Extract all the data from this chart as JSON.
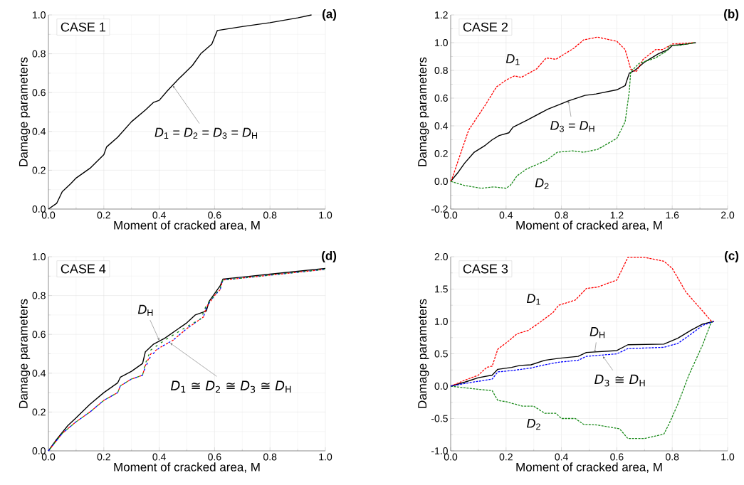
{
  "chart_data": [
    {
      "type": "line",
      "title": "(a)",
      "subtitle": "CASE 1",
      "xlabel": "Moment of cracked area, M",
      "ylabel": "Damage parameters",
      "grid": true,
      "xlim": [
        0,
        1
      ],
      "ylim": [
        0,
        1
      ],
      "xticks": [
        {
          "value": 0,
          "label": "0.0"
        },
        {
          "value": 0.2,
          "label": "0.2"
        },
        {
          "value": 0.4,
          "label": "0.4"
        },
        {
          "value": 0.6,
          "label": "0.6"
        },
        {
          "value": 0.8,
          "label": "0.8"
        },
        {
          "value": 1,
          "label": "1.0"
        }
      ],
      "yticks": [
        {
          "value": 0,
          "label": "0.0"
        },
        {
          "value": 0.2,
          "label": "0.2"
        },
        {
          "value": 0.4,
          "label": "0.4"
        },
        {
          "value": 0.6,
          "label": "0.6"
        },
        {
          "value": 0.8,
          "label": "0.8"
        },
        {
          "value": 1,
          "label": "1.0"
        }
      ],
      "series": [
        {
          "color": "#000000",
          "line_style": "solid",
          "x": [
            0,
            0.03,
            0.05,
            0.08,
            0.1,
            0.15,
            0.2,
            0.21,
            0.25,
            0.3,
            0.35,
            0.38,
            0.4,
            0.43,
            0.47,
            0.52,
            0.55,
            0.59,
            0.61,
            0.7,
            0.8,
            0.9,
            0.95
          ],
          "values": [
            0,
            0.03,
            0.09,
            0.13,
            0.16,
            0.21,
            0.28,
            0.32,
            0.37,
            0.45,
            0.51,
            0.55,
            0.56,
            0.61,
            0.67,
            0.74,
            0.8,
            0.85,
            0.92,
            0.94,
            0.96,
            0.985,
            1.0
          ]
        }
      ],
      "annotations": [
        "*D*$_{1}$ = *D*$_{2}$ = *D*$_{3}$ = *D*$_{H}$"
      ]
    },
    {
      "type": "line",
      "title": "(b)",
      "subtitle": "CASE 2",
      "xlabel": "Moment of cracked area, M",
      "ylabel": "Damage parameters",
      "grid": true,
      "xlim": [
        0,
        2
      ],
      "ylim": [
        -0.2,
        1.2
      ],
      "xticks": [
        {
          "value": 0,
          "label": "0.0"
        },
        {
          "value": 0.4,
          "label": "0.4"
        },
        {
          "value": 0.8,
          "label": "0.8"
        },
        {
          "value": 1.2,
          "label": "1.2"
        },
        {
          "value": 1.6,
          "label": "1.6"
        },
        {
          "value": 2,
          "label": "2.0"
        }
      ],
      "yticks": [
        {
          "value": -0.2,
          "label": "-0.2"
        },
        {
          "value": 0,
          "label": "0.0"
        },
        {
          "value": 0.2,
          "label": "0.2"
        },
        {
          "value": 0.4,
          "label": "0.4"
        },
        {
          "value": 0.6,
          "label": "0.6"
        },
        {
          "value": 0.8,
          "label": "0.8"
        },
        {
          "value": 1,
          "label": "1.0"
        },
        {
          "value": 1.2,
          "label": "1.2"
        }
      ],
      "series": [
        {
          "color": "#ff0000",
          "line_style": "dashed",
          "x": [
            0,
            0.01,
            0.13,
            0.25,
            0.33,
            0.4,
            0.46,
            0.51,
            0.62,
            0.69,
            0.76,
            0.89,
            0.96,
            1.06,
            1.2,
            1.26,
            1.3,
            1.34,
            1.39,
            1.48,
            1.53,
            1.6,
            1.76
          ],
          "values": [
            0,
            0.02,
            0.37,
            0.55,
            0.68,
            0.73,
            0.76,
            0.75,
            0.81,
            0.89,
            0.88,
            0.96,
            1.02,
            1.04,
            1.01,
            0.95,
            0.81,
            0.79,
            0.88,
            0.95,
            0.95,
            0.99,
            1.0
          ]
        },
        {
          "color": "#1a8a1a",
          "line_style": "dashed",
          "x": [
            0,
            0.1,
            0.22,
            0.31,
            0.4,
            0.43,
            0.48,
            0.55,
            0.69,
            0.77,
            0.88,
            0.96,
            1.06,
            1.2,
            1.26,
            1.29,
            1.3,
            1.36,
            1.48,
            1.56,
            1.58,
            1.65,
            1.76
          ],
          "values": [
            0,
            -0.03,
            -0.05,
            -0.04,
            -0.05,
            -0.03,
            0.04,
            0.09,
            0.15,
            0.21,
            0.22,
            0.21,
            0.23,
            0.31,
            0.43,
            0.65,
            0.79,
            0.85,
            0.89,
            0.94,
            0.98,
            0.98,
            1.0
          ]
        },
        {
          "color": "#000000",
          "line_style": "solid",
          "x": [
            0,
            0.05,
            0.1,
            0.17,
            0.25,
            0.3,
            0.35,
            0.42,
            0.45,
            0.55,
            0.7,
            0.8,
            0.85,
            0.97,
            1.05,
            1.2,
            1.26,
            1.29,
            1.33,
            1.4,
            1.5,
            1.57,
            1.6,
            1.7,
            1.77
          ],
          "values": [
            0,
            0.06,
            0.13,
            0.21,
            0.26,
            0.3,
            0.33,
            0.35,
            0.39,
            0.44,
            0.52,
            0.56,
            0.58,
            0.62,
            0.63,
            0.66,
            0.69,
            0.78,
            0.8,
            0.86,
            0.92,
            0.95,
            0.98,
            0.99,
            1.0
          ]
        }
      ],
      "annotations": [
        "*D*$_{1}$",
        "*D*$_{2}$",
        {
          "text": "*D*$_{3}$ = *D*$_{H}$",
          "x": 0.85,
          "y": 0.58
        }
      ]
    },
    {
      "type": "line",
      "title": "(d)",
      "subtitle": "CASE 4",
      "xlabel": "Moment of cracked area, M",
      "ylabel": "Damage parameters",
      "grid": true,
      "xlim": [
        0,
        1
      ],
      "ylim": [
        0,
        1
      ],
      "xticks": [
        {
          "value": 0,
          "label": "0.0"
        },
        {
          "value": 0.2,
          "label": "0.2"
        },
        {
          "value": 0.4,
          "label": "0.4"
        },
        {
          "value": 0.6,
          "label": "0.6"
        },
        {
          "value": 0.8,
          "label": "0.8"
        },
        {
          "value": 1,
          "label": "1.0"
        }
      ],
      "yticks": [
        {
          "value": 0,
          "label": "0.0"
        },
        {
          "value": 0.2,
          "label": "0.2"
        },
        {
          "value": 0.4,
          "label": "0.4"
        },
        {
          "value": 0.6,
          "label": "0.6"
        },
        {
          "value": 0.8,
          "label": "0.8"
        },
        {
          "value": 1,
          "label": "1.0"
        }
      ],
      "series": [
        {
          "color": "#000000",
          "line_style": "solid",
          "x": [
            0,
            0.03,
            0.07,
            0.1,
            0.15,
            0.2,
            0.25,
            0.26,
            0.3,
            0.34,
            0.35,
            0.38,
            0.42,
            0.47,
            0.5,
            0.53,
            0.57,
            0.58,
            0.6,
            0.62,
            0.63,
            0.7,
            0.8,
            0.9,
            1.0
          ],
          "values": [
            0,
            0.06,
            0.13,
            0.17,
            0.24,
            0.3,
            0.35,
            0.38,
            0.41,
            0.45,
            0.51,
            0.55,
            0.58,
            0.63,
            0.66,
            0.7,
            0.72,
            0.77,
            0.81,
            0.85,
            0.885,
            0.895,
            0.91,
            0.925,
            0.94
          ]
        },
        {
          "color": "#0000ff",
          "line_style": "dashed",
          "x": [
            0,
            0.05,
            0.1,
            0.15,
            0.2,
            0.25,
            0.26,
            0.3,
            0.34,
            0.35,
            0.37,
            0.4,
            0.45,
            0.5,
            0.53,
            0.56,
            0.57,
            0.6,
            0.62,
            0.63,
            0.7,
            0.8,
            0.9,
            1.0
          ],
          "values": [
            0,
            0.09,
            0.15,
            0.2,
            0.26,
            0.3,
            0.335,
            0.37,
            0.39,
            0.43,
            0.49,
            0.53,
            0.57,
            0.63,
            0.66,
            0.69,
            0.74,
            0.8,
            0.83,
            0.88,
            0.89,
            0.905,
            0.92,
            0.935
          ]
        },
        {
          "color": "#ff0000",
          "line_style": "dashed",
          "x": [
            0,
            0.05,
            0.1,
            0.15,
            0.2,
            0.25,
            0.26,
            0.3,
            0.34,
            0.35,
            0.37,
            0.4,
            0.45,
            0.5,
            0.53,
            0.56,
            0.57,
            0.6,
            0.62,
            0.63,
            0.7,
            0.8,
            0.9,
            1.0
          ],
          "values": [
            0,
            0.09,
            0.15,
            0.2,
            0.26,
            0.3,
            0.335,
            0.37,
            0.39,
            0.44,
            0.5,
            0.53,
            0.57,
            0.63,
            0.66,
            0.69,
            0.74,
            0.8,
            0.83,
            0.88,
            0.89,
            0.905,
            0.92,
            0.935
          ]
        },
        {
          "color": "#1a8a1a",
          "line_style": "dashed",
          "x": [
            0,
            0.05,
            0.1,
            0.15,
            0.2,
            0.25,
            0.26,
            0.3,
            0.34,
            0.35,
            0.37,
            0.42,
            0.5,
            0.55,
            0.57,
            0.6,
            0.62,
            0.63,
            0.7,
            0.8,
            0.9,
            1.0
          ],
          "values": [
            0,
            0.09,
            0.15,
            0.2,
            0.26,
            0.3,
            0.335,
            0.37,
            0.39,
            0.45,
            0.52,
            0.57,
            0.64,
            0.68,
            0.75,
            0.8,
            0.84,
            0.88,
            0.89,
            0.905,
            0.92,
            0.935
          ]
        }
      ],
      "annotations": [
        {
          "text": "*D*$_{H}$",
          "x": 0.4,
          "y": 0.57
        },
        "*D*$_{1}$ ≅ *D*$_{2}$ ≅ *D*$_{3}$ ≅ *D*$_{H}$"
      ]
    },
    {
      "type": "line",
      "title": "(c)",
      "subtitle": "CASE 3",
      "xlabel": "Moment of cracked area, M",
      "ylabel": "Damage parameters",
      "grid": true,
      "xlim": [
        0,
        1
      ],
      "ylim": [
        -1,
        2
      ],
      "xticks": [
        {
          "value": 0,
          "label": "0.0"
        },
        {
          "value": 0.2,
          "label": "0.2"
        },
        {
          "value": 0.4,
          "label": "0.4"
        },
        {
          "value": 0.6,
          "label": "0.6"
        },
        {
          "value": 0.8,
          "label": "0.8"
        },
        {
          "value": 1,
          "label": "1.0"
        }
      ],
      "yticks": [
        {
          "value": -1,
          "label": "-1.0"
        },
        {
          "value": -0.5,
          "label": "-0.5"
        },
        {
          "value": 0,
          "label": "0.0"
        },
        {
          "value": 0.5,
          "label": "0.5"
        },
        {
          "value": 1,
          "label": "1.0"
        },
        {
          "value": 1.5,
          "label": "1.5"
        },
        {
          "value": 2,
          "label": "2.0"
        }
      ],
      "series": [
        {
          "color": "#ff0000",
          "line_style": "dashed",
          "x": [
            0,
            0.05,
            0.1,
            0.13,
            0.15,
            0.17,
            0.21,
            0.24,
            0.28,
            0.33,
            0.37,
            0.39,
            0.45,
            0.49,
            0.53,
            0.6,
            0.64,
            0.7,
            0.77,
            0.8,
            0.85,
            0.91,
            0.94,
            0.95
          ],
          "values": [
            0,
            0.09,
            0.17,
            0.29,
            0.31,
            0.57,
            0.7,
            0.81,
            0.86,
            1.01,
            1.14,
            1.25,
            1.33,
            1.51,
            1.53,
            1.64,
            1.99,
            1.99,
            1.93,
            1.82,
            1.45,
            1.16,
            1.01,
            1.0
          ]
        },
        {
          "color": "#1a8a1a",
          "line_style": "dashed",
          "x": [
            0,
            0.08,
            0.15,
            0.17,
            0.2,
            0.26,
            0.3,
            0.34,
            0.38,
            0.4,
            0.45,
            0.48,
            0.53,
            0.61,
            0.64,
            0.7,
            0.77,
            0.79,
            0.82,
            0.86,
            0.91,
            0.94,
            0.95
          ],
          "values": [
            0,
            -0.04,
            -0.07,
            -0.22,
            -0.24,
            -0.31,
            -0.31,
            -0.42,
            -0.42,
            -0.5,
            -0.5,
            -0.59,
            -0.6,
            -0.66,
            -0.81,
            -0.81,
            -0.74,
            -0.57,
            -0.28,
            0.17,
            0.64,
            0.98,
            1.0
          ]
        },
        {
          "color": "#0000ff",
          "line_style": "dashed",
          "x": [
            0,
            0.05,
            0.15,
            0.17,
            0.22,
            0.29,
            0.34,
            0.39,
            0.46,
            0.49,
            0.6,
            0.64,
            0.77,
            0.82,
            0.87,
            0.91,
            0.95
          ],
          "values": [
            0,
            0.04,
            0.11,
            0.22,
            0.24,
            0.28,
            0.33,
            0.37,
            0.4,
            0.46,
            0.5,
            0.58,
            0.6,
            0.66,
            0.81,
            0.94,
            1.0
          ]
        },
        {
          "color": "#000000",
          "line_style": "solid",
          "x": [
            0,
            0.05,
            0.1,
            0.15,
            0.17,
            0.22,
            0.25,
            0.29,
            0.34,
            0.39,
            0.46,
            0.49,
            0.6,
            0.64,
            0.77,
            0.82,
            0.87,
            0.91,
            0.95
          ],
          "values": [
            0,
            0.06,
            0.13,
            0.17,
            0.26,
            0.29,
            0.32,
            0.33,
            0.4,
            0.43,
            0.46,
            0.52,
            0.55,
            0.64,
            0.65,
            0.74,
            0.87,
            0.96,
            1.0
          ]
        }
      ],
      "annotations": [
        "*D*$_{1}$",
        "*D*$_{2}$",
        {
          "text": "*D*$_{H}$",
          "x": 0.52,
          "y": 0.52
        },
        {
          "text": "*D*$_{3}$ ≅ *D*$_{H}$",
          "x": 0.55,
          "y": 0.46
        }
      ]
    }
  ]
}
